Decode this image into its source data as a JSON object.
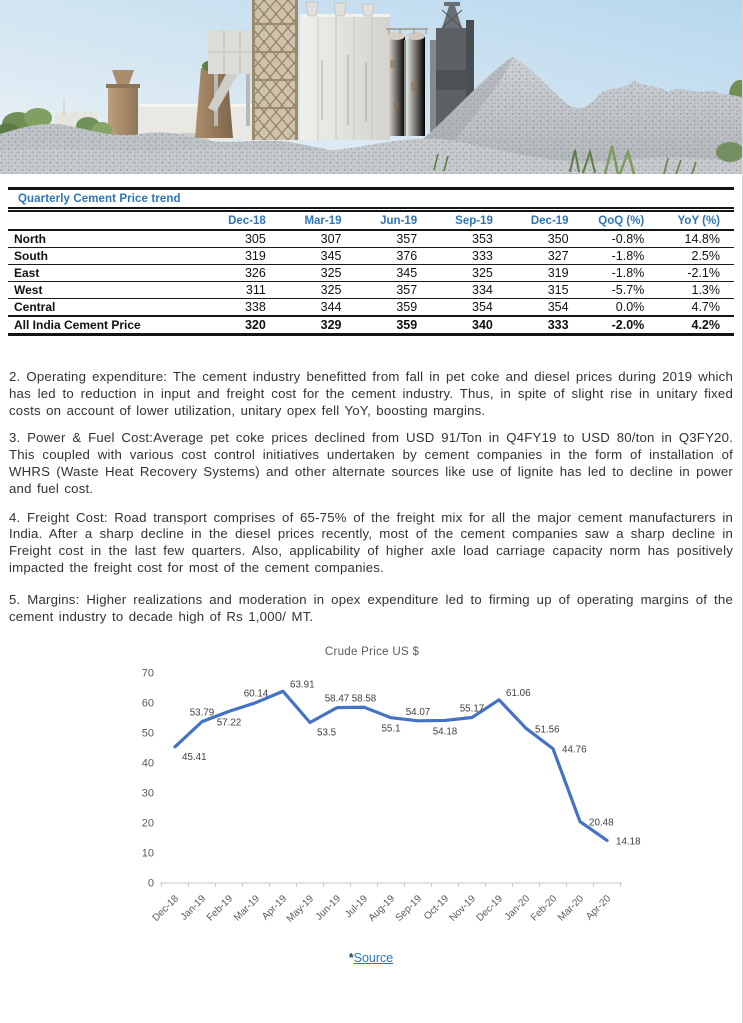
{
  "colors": {
    "table_accent_blue": "#2E75B6",
    "chart_line_blue": "#4472C4",
    "link_blue": "#2E75B6",
    "body_text": "#323232"
  },
  "table": {
    "title": "Quarterly Cement Price trend",
    "columns": [
      "",
      "Dec-18",
      "Mar-19",
      "Jun-19",
      "Sep-19",
      "Dec-19",
      "QoQ (%)",
      "YoY (%)"
    ],
    "rows": [
      {
        "label": "North",
        "bold": false,
        "values": [
          "305",
          "307",
          "357",
          "353",
          "350",
          "-0.8%",
          "14.8%"
        ]
      },
      {
        "label": "South",
        "bold": false,
        "values": [
          "319",
          "345",
          "376",
          "333",
          "327",
          "-1.8%",
          "2.5%"
        ]
      },
      {
        "label": "East",
        "bold": false,
        "values": [
          "326",
          "325",
          "345",
          "325",
          "319",
          "-1.8%",
          "-2.1%"
        ]
      },
      {
        "label": "West",
        "bold": false,
        "values": [
          "311",
          "325",
          "357",
          "334",
          "315",
          "-5.7%",
          "1.3%"
        ]
      },
      {
        "label": "Central",
        "bold": false,
        "values": [
          "338",
          "344",
          "359",
          "354",
          "354",
          "0.0%",
          "4.7%"
        ]
      },
      {
        "label": "All India Cement Price",
        "bold": true,
        "values": [
          "320",
          "329",
          "359",
          "340",
          "333",
          "-2.0%",
          "4.2%"
        ]
      }
    ]
  },
  "paragraphs": [
    "2. Operating expenditure: The cement industry  benefitted from fall in pet coke and diesel prices during 2019 which has led to reduction in input and freight cost for the cement industry. Thus, in spite of slight rise in unitary fixed costs on account of lower utilization, unitary opex fell YoY, boosting margins.",
    "3. Power & Fuel Cost:Average pet coke prices declined from USD 91/Ton in Q4FY19 to USD 80/ton in Q3FY20. This coupled with various cost control initiatives undertaken by cement companies in the form of installation of WHRS (Waste Heat Recovery Systems) and other alternate sources like use of lignite has led to decline in power and fuel cost.",
    "4. Freight Cost: Road transport comprises of 65-75% of the freight mix for all the major cement manufacturers in India. After a sharp decline in the diesel prices recently, most of the cement companies saw a sharp decline in Freight cost in the last few quarters. Also, applicability of higher axle load carriage capacity norm has positively impacted the freight cost for most of the cement companies.",
    "5. Margins: Higher realizations and moderation in opex expenditure led to firming up of operating margins of the cement industry to decade high of Rs 1,000/ MT."
  ],
  "chart_data": {
    "type": "line",
    "title": "Crude Price US $",
    "categories": [
      "Dec-18",
      "Jan-19",
      "Feb-19",
      "Mar-19",
      "Apr-19",
      "May-19",
      "Jun-19",
      "Jul-19",
      "Aug-19",
      "Sep-19",
      "Oct-19",
      "Nov-19",
      "Dec-19",
      "Jan-20",
      "Feb-20",
      "Mar-20",
      "Apr-20"
    ],
    "values": [
      45.41,
      53.79,
      57.22,
      60.14,
      63.91,
      53.5,
      58.47,
      58.58,
      55.1,
      54.07,
      54.18,
      55.17,
      61.06,
      51.56,
      44.76,
      20.48,
      14.18
    ],
    "ylim": [
      0,
      70
    ],
    "yticks": [
      0,
      10,
      20,
      30,
      40,
      50,
      60,
      70
    ],
    "line_color": "#4472C4",
    "grid": false,
    "legend": "none",
    "data_labels": true,
    "label_positions": [
      "below-right",
      "above",
      "below",
      "above",
      "above-right",
      "below-right",
      "above",
      "above",
      "below",
      "above",
      "below",
      "above",
      "above-right",
      "right",
      "right",
      "right",
      "right"
    ]
  },
  "footer": {
    "source_star": "*",
    "source_label": "Source"
  }
}
